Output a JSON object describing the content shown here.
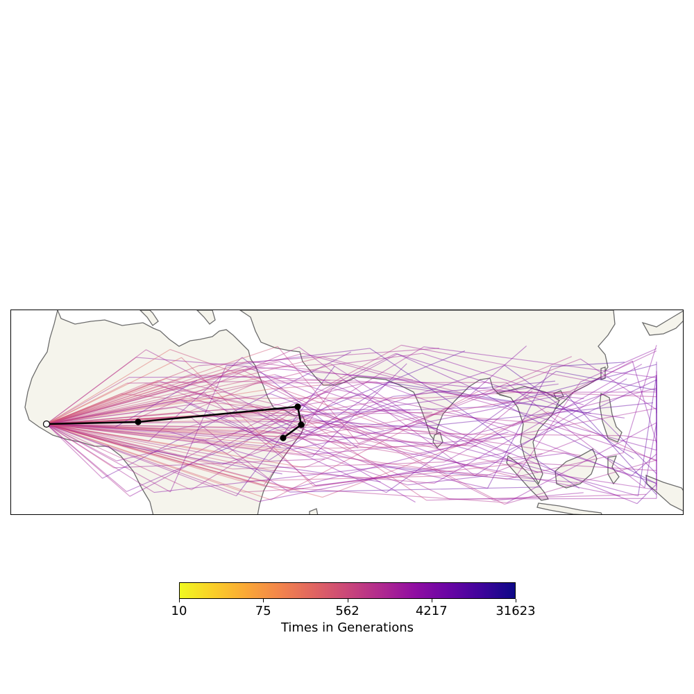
{
  "colors": {
    "land": "#f5f4ec",
    "coast": "#6b6b6b",
    "path": "#000000"
  },
  "colorbar": {
    "title": "Times in Generations",
    "scale": "log",
    "colormap": "plasma",
    "ticks": [
      "10",
      "75",
      "562",
      "4217",
      "31623"
    ]
  },
  "origin_point": "open white circle, West Africa",
  "path_points": [
    "start",
    "stop-1",
    "stop-2",
    "stop-3",
    "stop-4"
  ],
  "lineages": {
    "count": 90,
    "source": "West Africa",
    "color_by": "time (log scale)"
  }
}
